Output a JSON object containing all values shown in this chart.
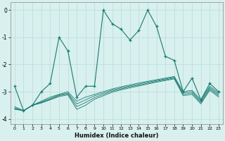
{
  "xlabel": "Humidex (Indice chaleur)",
  "x": [
    0,
    1,
    2,
    3,
    4,
    5,
    6,
    7,
    8,
    9,
    10,
    11,
    12,
    13,
    14,
    15,
    16,
    17,
    18,
    19,
    20,
    21,
    22,
    23
  ],
  "y_main": [
    -2.8,
    -3.7,
    -3.5,
    -3.0,
    -2.7,
    -1.0,
    -1.5,
    -3.2,
    -2.8,
    -2.8,
    0.0,
    -0.5,
    -0.7,
    -1.1,
    -0.75,
    0.0,
    -0.6,
    -1.7,
    -1.85,
    -3.0,
    -2.5,
    -3.3,
    -2.7,
    -3.0
  ],
  "y_line1": [
    -3.55,
    -3.7,
    -3.5,
    -3.35,
    -3.2,
    -3.1,
    -3.0,
    -3.35,
    -3.2,
    -3.1,
    -3.0,
    -2.9,
    -2.82,
    -2.75,
    -2.68,
    -2.62,
    -2.56,
    -2.5,
    -2.44,
    -3.0,
    -2.95,
    -3.3,
    -2.8,
    -3.05
  ],
  "y_line2": [
    -3.6,
    -3.7,
    -3.5,
    -3.38,
    -3.25,
    -3.12,
    -3.05,
    -3.45,
    -3.3,
    -3.15,
    -3.05,
    -2.94,
    -2.86,
    -2.79,
    -2.72,
    -2.65,
    -2.59,
    -2.53,
    -2.47,
    -3.05,
    -3.0,
    -3.35,
    -2.85,
    -3.1
  ],
  "y_line3": [
    -3.62,
    -3.7,
    -3.5,
    -3.4,
    -3.28,
    -3.15,
    -3.08,
    -3.55,
    -3.4,
    -3.22,
    -3.1,
    -2.98,
    -2.9,
    -2.82,
    -2.76,
    -2.69,
    -2.62,
    -2.56,
    -2.5,
    -3.1,
    -3.05,
    -3.4,
    -2.9,
    -3.15
  ],
  "y_line4": [
    -3.65,
    -3.7,
    -3.5,
    -3.42,
    -3.3,
    -3.18,
    -3.12,
    -3.65,
    -3.5,
    -3.28,
    -3.15,
    -3.02,
    -2.93,
    -2.86,
    -2.79,
    -2.72,
    -2.65,
    -2.59,
    -2.53,
    -3.15,
    -3.1,
    -3.45,
    -2.95,
    -3.2
  ],
  "line_color": "#1a7a6e",
  "bg_color": "#d8f0ee",
  "grid_color": "#b8dcd8",
  "ylim": [
    -4.2,
    0.3
  ],
  "yticks": [
    0,
    -1,
    -2,
    -3,
    -4
  ],
  "xticks": [
    0,
    1,
    2,
    3,
    4,
    5,
    6,
    7,
    8,
    9,
    10,
    11,
    12,
    13,
    14,
    15,
    16,
    17,
    18,
    19,
    20,
    21,
    22,
    23
  ]
}
